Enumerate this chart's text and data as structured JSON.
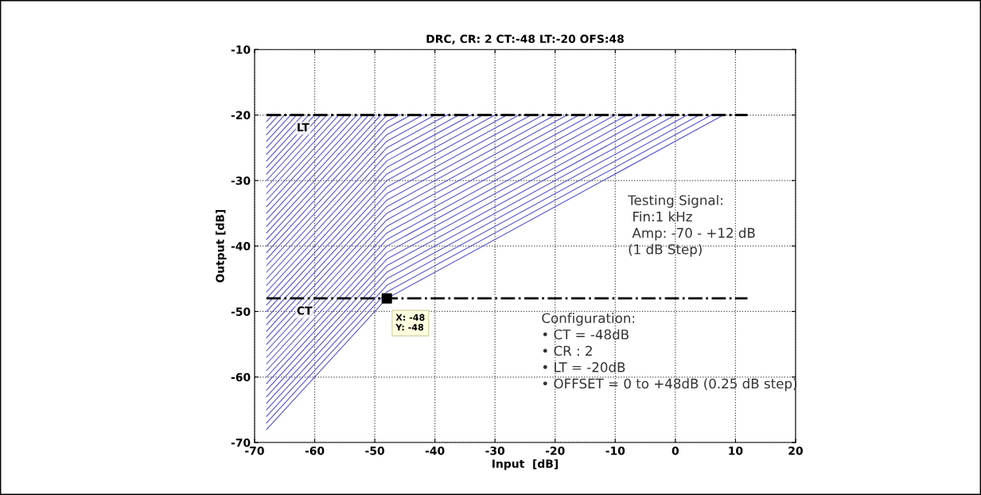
{
  "chart_data": {
    "type": "line",
    "title": "DRC, CR: 2 CT:-48 LT:-20 OFS:48",
    "xlabel": "Input  [dB]",
    "ylabel": "Output [dB]",
    "xlim": [
      -70,
      20
    ],
    "xticks": [
      -70,
      -60,
      -50,
      -40,
      -30,
      -20,
      -10,
      0,
      10,
      20
    ],
    "ylim": [
      -70,
      -10
    ],
    "yticks": [
      -70,
      -60,
      -50,
      -40,
      -30,
      -20,
      -10
    ],
    "grid": true,
    "line_style": "solid",
    "series": [
      {
        "color": "#5555d5",
        "x": [
          -68,
          -48,
          8
        ],
        "values": [
          -68,
          -48,
          -20
        ]
      },
      {
        "color": "#5555d5",
        "x": [
          -68,
          -48,
          6
        ],
        "values": [
          -67,
          -47,
          -20
        ]
      },
      {
        "color": "#5555d5",
        "x": [
          -68,
          -48,
          4
        ],
        "values": [
          -66,
          -46,
          -20
        ]
      },
      {
        "color": "#5555d5",
        "x": [
          -68,
          -48,
          2
        ],
        "values": [
          -65,
          -45,
          -20
        ]
      },
      {
        "color": "#5555d5",
        "x": [
          -68,
          -48,
          0
        ],
        "values": [
          -64,
          -44,
          -20
        ]
      },
      {
        "color": "#5555d5",
        "x": [
          -68,
          -48,
          -2
        ],
        "values": [
          -63,
          -43,
          -20
        ]
      },
      {
        "color": "#5555d5",
        "x": [
          -68,
          -48,
          -4
        ],
        "values": [
          -62,
          -42,
          -20
        ]
      },
      {
        "color": "#5555d5",
        "x": [
          -68,
          -48,
          -6
        ],
        "values": [
          -61,
          -41,
          -20
        ]
      },
      {
        "color": "#5555d5",
        "x": [
          -68,
          -48,
          -8
        ],
        "values": [
          -60,
          -40,
          -20
        ]
      },
      {
        "color": "#5555d5",
        "x": [
          -68,
          -48,
          -10
        ],
        "values": [
          -59,
          -39,
          -20
        ]
      },
      {
        "color": "#5555d5",
        "x": [
          -68,
          -48,
          -12
        ],
        "values": [
          -58,
          -38,
          -20
        ]
      },
      {
        "color": "#5555d5",
        "x": [
          -68,
          -48,
          -14
        ],
        "values": [
          -57,
          -37,
          -20
        ]
      },
      {
        "color": "#5555d5",
        "x": [
          -68,
          -48,
          -16
        ],
        "values": [
          -56,
          -36,
          -20
        ]
      },
      {
        "color": "#5555d5",
        "x": [
          -68,
          -48,
          -18
        ],
        "values": [
          -55,
          -35,
          -20
        ]
      },
      {
        "color": "#5555d5",
        "x": [
          -68,
          -48,
          -20
        ],
        "values": [
          -54,
          -34,
          -20
        ]
      },
      {
        "color": "#5555d5",
        "x": [
          -68,
          -48,
          -22
        ],
        "values": [
          -53,
          -33,
          -20
        ]
      },
      {
        "color": "#5555d5",
        "x": [
          -68,
          -48,
          -24
        ],
        "values": [
          -52,
          -32,
          -20
        ]
      },
      {
        "color": "#5555d5",
        "x": [
          -68,
          -48,
          -26
        ],
        "values": [
          -51,
          -31,
          -20
        ]
      },
      {
        "color": "#5555d5",
        "x": [
          -68,
          -48,
          -28
        ],
        "values": [
          -50,
          -30,
          -20
        ]
      },
      {
        "color": "#5555d5",
        "x": [
          -68,
          -48,
          -30
        ],
        "values": [
          -49,
          -29,
          -20
        ]
      },
      {
        "color": "#5555d5",
        "x": [
          -68,
          -48,
          -32
        ],
        "values": [
          -48,
          -28,
          -20
        ]
      },
      {
        "color": "#5555d5",
        "x": [
          -68,
          -48,
          -34
        ],
        "values": [
          -47,
          -27,
          -20
        ]
      },
      {
        "color": "#5555d5",
        "x": [
          -68,
          -48,
          -36
        ],
        "values": [
          -46,
          -26,
          -20
        ]
      },
      {
        "color": "#5555d5",
        "x": [
          -68,
          -48,
          -38
        ],
        "values": [
          -45,
          -25,
          -20
        ]
      },
      {
        "color": "#5555d5",
        "x": [
          -68,
          -48,
          -40
        ],
        "values": [
          -44,
          -24,
          -20
        ]
      },
      {
        "color": "#5555d5",
        "x": [
          -68,
          -48,
          -42
        ],
        "values": [
          -43,
          -23,
          -20
        ]
      },
      {
        "color": "#5555d5",
        "x": [
          -68,
          -48,
          -44
        ],
        "values": [
          -42,
          -22,
          -20
        ]
      },
      {
        "color": "#5555d5",
        "x": [
          -68,
          -48,
          -46
        ],
        "values": [
          -41,
          -21,
          -20
        ]
      },
      {
        "color": "#5555d5",
        "x": [
          -68,
          -48
        ],
        "values": [
          -40,
          -20
        ]
      },
      {
        "color": "#5555d5",
        "x": [
          -68,
          -49
        ],
        "values": [
          -39,
          -20
        ]
      },
      {
        "color": "#5555d5",
        "x": [
          -68,
          -50
        ],
        "values": [
          -38,
          -20
        ]
      },
      {
        "color": "#5555d5",
        "x": [
          -68,
          -51
        ],
        "values": [
          -37,
          -20
        ]
      },
      {
        "color": "#5555d5",
        "x": [
          -68,
          -52
        ],
        "values": [
          -36,
          -20
        ]
      },
      {
        "color": "#5555d5",
        "x": [
          -68,
          -53
        ],
        "values": [
          -35,
          -20
        ]
      },
      {
        "color": "#5555d5",
        "x": [
          -68,
          -54
        ],
        "values": [
          -34,
          -20
        ]
      },
      {
        "color": "#5555d5",
        "x": [
          -68,
          -55
        ],
        "values": [
          -33,
          -20
        ]
      },
      {
        "color": "#5555d5",
        "x": [
          -68,
          -56
        ],
        "values": [
          -32,
          -20
        ]
      },
      {
        "color": "#5555d5",
        "x": [
          -68,
          -57
        ],
        "values": [
          -31,
          -20
        ]
      },
      {
        "color": "#5555d5",
        "x": [
          -68,
          -58
        ],
        "values": [
          -30,
          -20
        ]
      },
      {
        "color": "#5555d5",
        "x": [
          -68,
          -59
        ],
        "values": [
          -29,
          -20
        ]
      },
      {
        "color": "#5555d5",
        "x": [
          -68,
          -60
        ],
        "values": [
          -28,
          -20
        ]
      },
      {
        "color": "#5555d5",
        "x": [
          -68,
          -61
        ],
        "values": [
          -27,
          -20
        ]
      },
      {
        "color": "#5555d5",
        "x": [
          -68,
          -62
        ],
        "values": [
          -26,
          -20
        ]
      },
      {
        "color": "#5555d5",
        "x": [
          -68,
          -63
        ],
        "values": [
          -25,
          -20
        ]
      },
      {
        "color": "#5555d5",
        "x": [
          -68,
          -64
        ],
        "values": [
          -24,
          -20
        ]
      },
      {
        "color": "#5555d5",
        "x": [
          -68,
          -65
        ],
        "values": [
          -23,
          -20
        ]
      },
      {
        "color": "#5555d5",
        "x": [
          -68,
          -66
        ],
        "values": [
          -22,
          -20
        ]
      },
      {
        "color": "#5555d5",
        "x": [
          -68,
          -67
        ],
        "values": [
          -21,
          -20
        ]
      },
      {
        "name": "LT",
        "color": "#000000",
        "line_style": "dashdot",
        "x": [
          -68,
          12
        ],
        "values": [
          -20,
          -20
        ]
      },
      {
        "name": "CT",
        "color": "#000000",
        "line_style": "dashdot",
        "x": [
          -68,
          12
        ],
        "values": [
          -48,
          -48
        ]
      },
      {
        "type": "scatter",
        "marker": "square",
        "color": "#000000",
        "x": [
          -48
        ],
        "values": [
          -48
        ]
      }
    ],
    "annotations": [
      {
        "text": "X: -48\nY: -48",
        "x": -48,
        "y": -48
      },
      "Testing Signal:\n Fin:1 kHz\n Amp: -70 - +12 dB\n(1 dB Step)",
      "Configuration:\n• CT = -48dB\n• CR : 2\n• LT = -20dB\n• OFFSET = 0 to +48dB (0.25 dB step)"
    ]
  }
}
